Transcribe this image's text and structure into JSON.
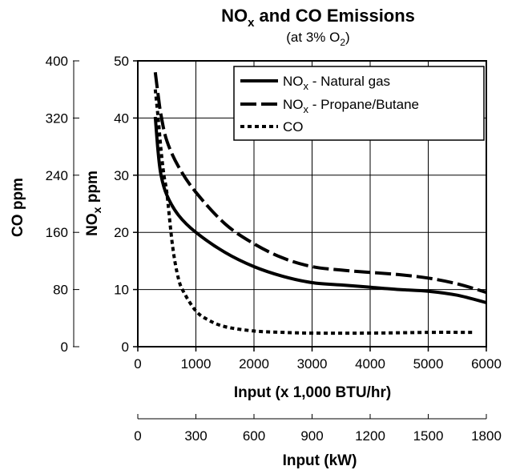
{
  "chart_data": {
    "type": "line",
    "title": {
      "main": "NO",
      "sub": "x",
      "rest": " and CO Emissions"
    },
    "subtitle": {
      "main": "(at 3% O",
      "sub": "2",
      "rest": ")"
    },
    "x_axis": {
      "label": "Input (x 1,000 BTU/hr)",
      "range": [
        0,
        6000
      ],
      "ticks": [
        0,
        1000,
        2000,
        3000,
        4000,
        5000,
        6000
      ]
    },
    "x_axis_secondary": {
      "label": "Input (kW)",
      "range": [
        0,
        1800
      ],
      "ticks": [
        0,
        300,
        600,
        900,
        1200,
        1500,
        1800
      ]
    },
    "y_axis_left": {
      "label": "CO ppm",
      "range": [
        0,
        400
      ],
      "ticks": [
        0,
        80,
        160,
        240,
        320,
        400
      ]
    },
    "y_axis_right": {
      "label": {
        "main": "NO",
        "sub": "x",
        "rest": " ppm"
      },
      "range": [
        0,
        50
      ],
      "ticks": [
        0,
        10,
        20,
        30,
        40,
        50
      ]
    },
    "grid": true,
    "legend_position": "top-right",
    "series": [
      {
        "name": {
          "main": "NO",
          "sub": "x",
          "rest": " - Natural gas"
        },
        "axis": "nox",
        "style": "solid",
        "x": [
          300,
          350,
          400,
          500,
          700,
          1000,
          1500,
          2000,
          2500,
          3000,
          3500,
          4000,
          4500,
          5000,
          5500,
          6000
        ],
        "y": [
          40.2,
          34,
          30,
          26.5,
          23,
          20,
          16.5,
          14,
          12.3,
          11.2,
          10.8,
          10.4,
          10,
          9.7,
          9,
          7.7
        ]
      },
      {
        "name": {
          "main": "NO",
          "sub": "x",
          "rest": " - Propane/Butane"
        },
        "axis": "nox",
        "style": "dashed",
        "x": [
          300,
          350,
          400,
          500,
          700,
          1000,
          1500,
          2000,
          2500,
          3000,
          3500,
          4000,
          4500,
          5000,
          5500,
          6000
        ],
        "y": [
          48,
          44,
          40.5,
          36,
          31.5,
          27,
          21.5,
          18,
          15.5,
          14,
          13.4,
          13,
          12.6,
          12,
          11,
          9.5
        ]
      },
      {
        "name": {
          "main": "CO",
          "sub": "",
          "rest": ""
        },
        "axis": "co",
        "style": "dotted",
        "x": [
          300,
          350,
          400,
          450,
          500,
          600,
          700,
          800,
          1000,
          1200,
          1500,
          2000,
          2500,
          3000,
          4000,
          5000,
          5800
        ],
        "y": [
          360,
          320,
          275,
          240,
          215,
          140,
          95,
          75,
          50,
          38,
          28,
          22,
          20,
          19,
          19,
          20,
          20
        ]
      }
    ]
  }
}
